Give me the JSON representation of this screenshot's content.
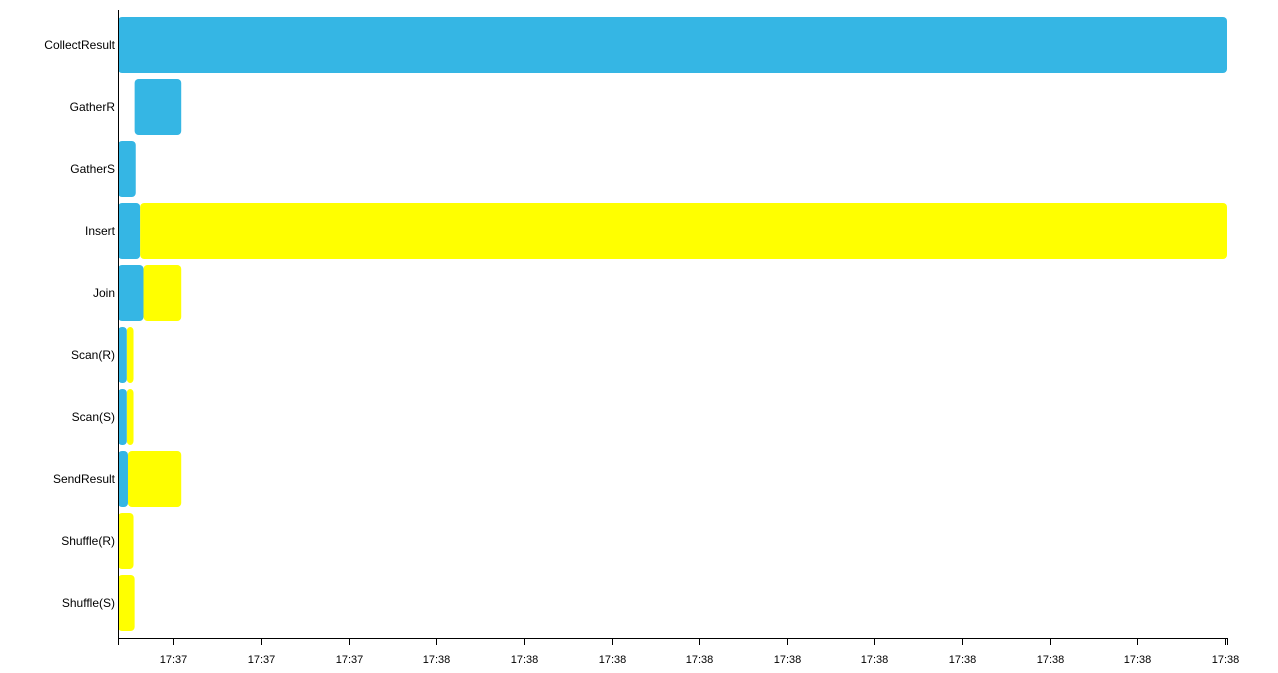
{
  "chart_data": {
    "type": "gantt",
    "title": "",
    "xlabel": "",
    "ylabel": "",
    "x_domain": [
      0,
      100
    ],
    "rows": [
      "CollectResult",
      "GatherR",
      "GatherS",
      "Insert",
      "Join",
      "Scan(R)",
      "Scan(S)",
      "SendResult",
      "Shuffle(R)",
      "Shuffle(S)"
    ],
    "tick_values": [
      5,
      12.9,
      20.8,
      28.7,
      36.6,
      44.5,
      52.4,
      60.3,
      68.2,
      76.1,
      84,
      91.9,
      99.8
    ],
    "tick_labels": [
      "17:37",
      "17:37",
      "17:37",
      "17:38",
      "17:38",
      "17:38",
      "17:38",
      "17:38",
      "17:38",
      "17:38",
      "17:38",
      "17:38",
      "17:38"
    ],
    "colors": {
      "blue": "#35b6e4",
      "yellow": "#ffff00"
    },
    "segments": [
      {
        "row": "CollectResult",
        "start": 0,
        "end": 100,
        "color": "blue"
      },
      {
        "row": "GatherR",
        "start": 1.5,
        "end": 5.7,
        "color": "blue"
      },
      {
        "row": "GatherS",
        "start": 0,
        "end": 1.6,
        "color": "blue"
      },
      {
        "row": "Insert",
        "start": 0,
        "end": 2.0,
        "color": "blue"
      },
      {
        "row": "Insert",
        "start": 2.0,
        "end": 100,
        "color": "yellow"
      },
      {
        "row": "Join",
        "start": 0,
        "end": 2.3,
        "color": "blue"
      },
      {
        "row": "Join",
        "start": 2.3,
        "end": 5.7,
        "color": "yellow"
      },
      {
        "row": "Scan(R)",
        "start": 0,
        "end": 0.8,
        "color": "blue"
      },
      {
        "row": "Scan(R)",
        "start": 0.8,
        "end": 1.4,
        "color": "yellow"
      },
      {
        "row": "Scan(S)",
        "start": 0,
        "end": 0.8,
        "color": "blue"
      },
      {
        "row": "Scan(S)",
        "start": 0.8,
        "end": 1.4,
        "color": "yellow"
      },
      {
        "row": "SendResult",
        "start": 0,
        "end": 0.9,
        "color": "blue"
      },
      {
        "row": "SendResult",
        "start": 0.9,
        "end": 5.7,
        "color": "yellow"
      },
      {
        "row": "Shuffle(R)",
        "start": 0,
        "end": 1.4,
        "color": "yellow"
      },
      {
        "row": "Shuffle(S)",
        "start": 0,
        "end": 1.5,
        "color": "yellow"
      }
    ]
  }
}
